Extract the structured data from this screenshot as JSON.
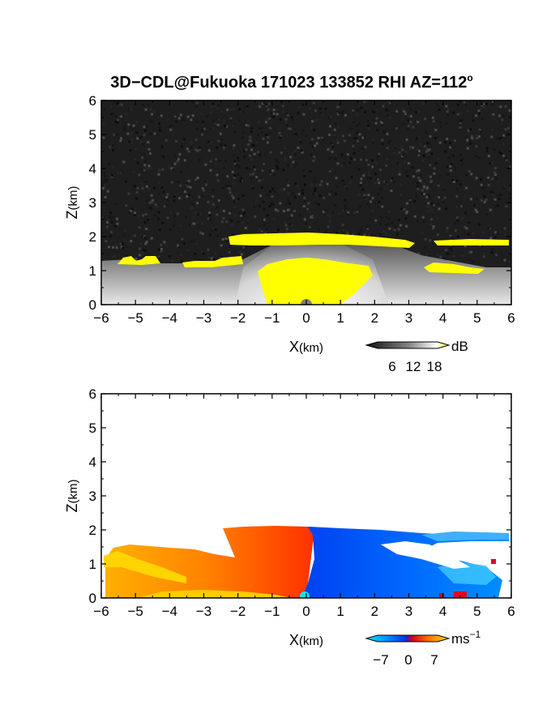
{
  "figure": {
    "title_main": "3D−CDL@Fukuoka 171023 133852 RHI AZ=112",
    "title_sup": "o"
  },
  "chart_data": [
    {
      "type": "heatmap",
      "name": "reflectivity",
      "xlabel_main": "X",
      "xlabel_unit": "(km)",
      "ylabel_main": "Z",
      "ylabel_unit": "(km)",
      "xlim": [
        -6,
        6
      ],
      "ylim": [
        0,
        6
      ],
      "x_ticks": [
        "−6",
        "−5",
        "−4",
        "−3",
        "−2",
        "−1",
        "0",
        "1",
        "2",
        "3",
        "4",
        "5",
        "6"
      ],
      "y_ticks": [
        "0",
        "1",
        "2",
        "3",
        "4",
        "5",
        "6"
      ],
      "colorbar": {
        "unit": "dB",
        "ticks": [
          "6",
          "12",
          "18"
        ],
        "colors": [
          "#101010",
          "#404040",
          "#707070",
          "#a0a0a0",
          "#d0d0d0",
          "#ffffff",
          "#ffff00"
        ]
      },
      "regions": [
        {
          "desc": "elevated layer",
          "x": [
            -2.3,
            3.2
          ],
          "z": [
            1.75,
            2.05
          ],
          "color": "#ffff00"
        },
        {
          "desc": "elevated layer right",
          "x": [
            3.8,
            6.0
          ],
          "z": [
            1.72,
            1.88
          ],
          "color": "#ffff00"
        },
        {
          "desc": "boundary layer top",
          "x": [
            -5.5,
            -0.5
          ],
          "z": [
            1.1,
            1.4
          ],
          "color": "#ffff00"
        },
        {
          "desc": "near-radar echo",
          "x": [
            -1.5,
            1.5
          ],
          "z": [
            0.0,
            1.3
          ],
          "color": "#ffff00"
        },
        {
          "desc": "lower layer right",
          "x": [
            3.5,
            5.3
          ],
          "z": [
            0.95,
            1.15
          ],
          "color": "#ffff00"
        }
      ]
    },
    {
      "type": "heatmap",
      "name": "doppler_velocity",
      "xlabel_main": "X",
      "xlabel_unit": "(km)",
      "ylabel_main": "Z",
      "ylabel_unit": "(km)",
      "xlim": [
        -6,
        6
      ],
      "ylim": [
        0,
        6
      ],
      "x_ticks": [
        "−6",
        "−5",
        "−4",
        "−3",
        "−2",
        "−1",
        "0",
        "1",
        "2",
        "3",
        "4",
        "5",
        "6"
      ],
      "y_ticks": [
        "0",
        "1",
        "2",
        "3",
        "4",
        "5",
        "6"
      ],
      "colorbar": {
        "unit": "ms",
        "unit_sup": "−1",
        "ticks": [
          "−7",
          "0",
          "7"
        ],
        "colors": [
          "#00e0ff",
          "#0090ff",
          "#0030e0",
          "#c00020",
          "#ff4000",
          "#ff9000",
          "#ffe000"
        ]
      },
      "regions": [
        {
          "desc": "positive velocity left",
          "x": [
            -6.0,
            0.5
          ],
          "z": [
            0.0,
            2.05
          ],
          "value": 5
        },
        {
          "desc": "negative velocity right",
          "x": [
            0.5,
            6.0
          ],
          "z": [
            0.0,
            2.05
          ],
          "value": -5
        }
      ]
    }
  ]
}
